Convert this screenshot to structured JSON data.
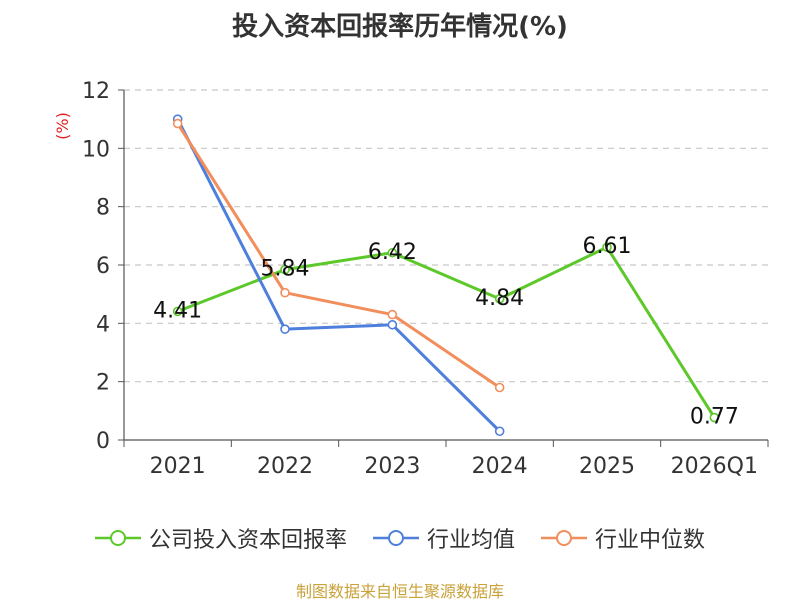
{
  "title": "投入资本回报率历年情况(%)",
  "source": "制图数据来自恒生聚源数据库",
  "chart_data": {
    "type": "line",
    "title": "投入资本回报率历年情况(%)",
    "ylabel": "(%)",
    "xlabel": "",
    "ylim": [
      0,
      12
    ],
    "yticks": [
      "0",
      "2",
      "4",
      "6",
      "8",
      "10",
      "12"
    ],
    "grid": true,
    "legend_position": "bottom",
    "categories": [
      "2021",
      "2022",
      "2023",
      "2024",
      "2025",
      "2026Q1"
    ],
    "series": [
      {
        "name": "公司投入资本回报率",
        "color": "#5cc829",
        "values": [
          4.41,
          5.84,
          6.42,
          4.84,
          6.61,
          0.77
        ],
        "labels": [
          "4.41",
          "5.84",
          "6.42",
          "4.84",
          "6.61",
          "0.77"
        ],
        "show_labels": true
      },
      {
        "name": "行业均值",
        "color": "#4e7fdc",
        "values": [
          11.0,
          3.8,
          3.95,
          0.3,
          null,
          null
        ],
        "show_labels": false
      },
      {
        "name": "行业中位数",
        "color": "#f28e5c",
        "values": [
          10.85,
          5.05,
          4.3,
          1.8,
          null,
          null
        ],
        "show_labels": false
      }
    ]
  }
}
